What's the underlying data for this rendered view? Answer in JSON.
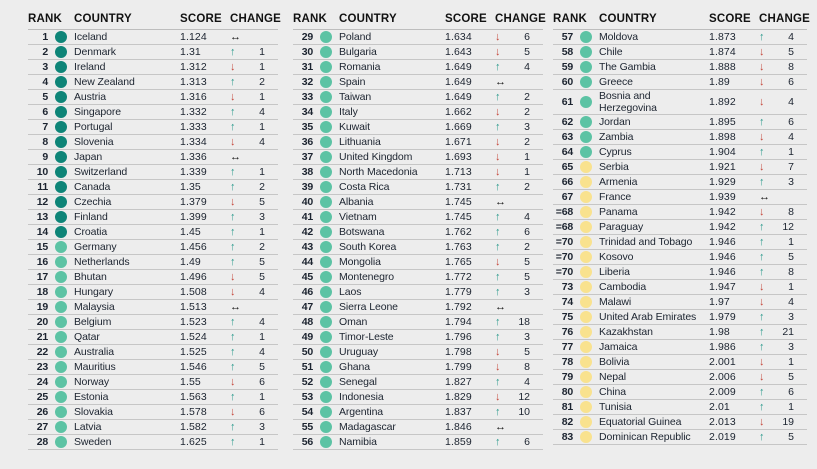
{
  "header": {
    "rank": "RANK",
    "country": "COUNTRY",
    "score": "SCORE",
    "change": "CHANGE"
  },
  "icons": {
    "up": "↑",
    "down": "↓",
    "same": "↔"
  },
  "colors": {
    "background": "#ededed",
    "row_divider": "#c6c6c6",
    "tier_dark_teal": "#0e8578",
    "tier_teal": "#5cc3a4",
    "tier_yellow": "#f9e28e",
    "change_up": "#2b9a8c",
    "change_down": "#c4473b",
    "change_same": "#121212"
  },
  "tables": [
    {
      "rows": [
        {
          "rank": "1",
          "country": "Iceland",
          "score": "1.124",
          "tier": "dark_teal",
          "change": {
            "dir": "same",
            "value": null
          }
        },
        {
          "rank": "2",
          "country": "Denmark",
          "score": "1.31",
          "tier": "dark_teal",
          "change": {
            "dir": "up",
            "value": "1"
          }
        },
        {
          "rank": "3",
          "country": "Ireland",
          "score": "1.312",
          "tier": "dark_teal",
          "change": {
            "dir": "down",
            "value": "1"
          }
        },
        {
          "rank": "4",
          "country": "New Zealand",
          "score": "1.313",
          "tier": "dark_teal",
          "change": {
            "dir": "up",
            "value": "2"
          }
        },
        {
          "rank": "5",
          "country": "Austria",
          "score": "1.316",
          "tier": "dark_teal",
          "change": {
            "dir": "down",
            "value": "1"
          }
        },
        {
          "rank": "6",
          "country": "Singapore",
          "score": "1.332",
          "tier": "dark_teal",
          "change": {
            "dir": "up",
            "value": "4"
          }
        },
        {
          "rank": "7",
          "country": "Portugal",
          "score": "1.333",
          "tier": "dark_teal",
          "change": {
            "dir": "up",
            "value": "1"
          }
        },
        {
          "rank": "8",
          "country": "Slovenia",
          "score": "1.334",
          "tier": "dark_teal",
          "change": {
            "dir": "down",
            "value": "4"
          }
        },
        {
          "rank": "9",
          "country": "Japan",
          "score": "1.336",
          "tier": "dark_teal",
          "change": {
            "dir": "same",
            "value": null
          }
        },
        {
          "rank": "10",
          "country": "Switzerland",
          "score": "1.339",
          "tier": "dark_teal",
          "change": {
            "dir": "up",
            "value": "1"
          }
        },
        {
          "rank": "11",
          "country": "Canada",
          "score": "1.35",
          "tier": "dark_teal",
          "change": {
            "dir": "up",
            "value": "2"
          }
        },
        {
          "rank": "12",
          "country": "Czechia",
          "score": "1.379",
          "tier": "dark_teal",
          "change": {
            "dir": "down",
            "value": "5"
          }
        },
        {
          "rank": "13",
          "country": "Finland",
          "score": "1.399",
          "tier": "dark_teal",
          "change": {
            "dir": "up",
            "value": "3"
          }
        },
        {
          "rank": "14",
          "country": "Croatia",
          "score": "1.45",
          "tier": "dark_teal",
          "change": {
            "dir": "up",
            "value": "1"
          }
        },
        {
          "rank": "15",
          "country": "Germany",
          "score": "1.456",
          "tier": "teal",
          "change": {
            "dir": "up",
            "value": "2"
          }
        },
        {
          "rank": "16",
          "country": "Netherlands",
          "score": "1.49",
          "tier": "teal",
          "change": {
            "dir": "up",
            "value": "5"
          }
        },
        {
          "rank": "17",
          "country": "Bhutan",
          "score": "1.496",
          "tier": "teal",
          "change": {
            "dir": "down",
            "value": "5"
          }
        },
        {
          "rank": "18",
          "country": "Hungary",
          "score": "1.508",
          "tier": "teal",
          "change": {
            "dir": "down",
            "value": "4"
          }
        },
        {
          "rank": "19",
          "country": "Malaysia",
          "score": "1.513",
          "tier": "teal",
          "change": {
            "dir": "same",
            "value": null
          }
        },
        {
          "rank": "20",
          "country": "Belgium",
          "score": "1.523",
          "tier": "teal",
          "change": {
            "dir": "up",
            "value": "4"
          }
        },
        {
          "rank": "21",
          "country": "Qatar",
          "score": "1.524",
          "tier": "teal",
          "change": {
            "dir": "up",
            "value": "1"
          }
        },
        {
          "rank": "22",
          "country": "Australia",
          "score": "1.525",
          "tier": "teal",
          "change": {
            "dir": "up",
            "value": "4"
          }
        },
        {
          "rank": "23",
          "country": "Mauritius",
          "score": "1.546",
          "tier": "teal",
          "change": {
            "dir": "up",
            "value": "5"
          }
        },
        {
          "rank": "24",
          "country": "Norway",
          "score": "1.55",
          "tier": "teal",
          "change": {
            "dir": "down",
            "value": "6"
          }
        },
        {
          "rank": "25",
          "country": "Estonia",
          "score": "1.563",
          "tier": "teal",
          "change": {
            "dir": "up",
            "value": "1"
          }
        },
        {
          "rank": "26",
          "country": "Slovakia",
          "score": "1.578",
          "tier": "teal",
          "change": {
            "dir": "down",
            "value": "6"
          }
        },
        {
          "rank": "27",
          "country": "Latvia",
          "score": "1.582",
          "tier": "teal",
          "change": {
            "dir": "up",
            "value": "3"
          }
        },
        {
          "rank": "28",
          "country": "Sweden",
          "score": "1.625",
          "tier": "teal",
          "change": {
            "dir": "up",
            "value": "1"
          }
        }
      ]
    },
    {
      "rows": [
        {
          "rank": "29",
          "country": "Poland",
          "score": "1.634",
          "tier": "teal",
          "change": {
            "dir": "down",
            "value": "6"
          }
        },
        {
          "rank": "30",
          "country": "Bulgaria",
          "score": "1.643",
          "tier": "teal",
          "change": {
            "dir": "down",
            "value": "5"
          }
        },
        {
          "rank": "31",
          "country": "Romania",
          "score": "1.649",
          "tier": "teal",
          "change": {
            "dir": "up",
            "value": "4"
          }
        },
        {
          "rank": "32",
          "country": "Spain",
          "score": "1.649",
          "tier": "teal",
          "change": {
            "dir": "same",
            "value": null
          }
        },
        {
          "rank": "33",
          "country": "Taiwan",
          "score": "1.649",
          "tier": "teal",
          "change": {
            "dir": "up",
            "value": "2"
          }
        },
        {
          "rank": "34",
          "country": "Italy",
          "score": "1.662",
          "tier": "teal",
          "change": {
            "dir": "down",
            "value": "2"
          }
        },
        {
          "rank": "35",
          "country": "Kuwait",
          "score": "1.669",
          "tier": "teal",
          "change": {
            "dir": "up",
            "value": "3"
          }
        },
        {
          "rank": "36",
          "country": "Lithuania",
          "score": "1.671",
          "tier": "teal",
          "change": {
            "dir": "down",
            "value": "2"
          }
        },
        {
          "rank": "37",
          "country": "United Kingdom",
          "score": "1.693",
          "tier": "teal",
          "change": {
            "dir": "down",
            "value": "1"
          }
        },
        {
          "rank": "38",
          "country": "North Macedonia",
          "score": "1.713",
          "tier": "teal",
          "change": {
            "dir": "down",
            "value": "1"
          }
        },
        {
          "rank": "39",
          "country": "Costa Rica",
          "score": "1.731",
          "tier": "teal",
          "change": {
            "dir": "up",
            "value": "2"
          }
        },
        {
          "rank": "40",
          "country": "Albania",
          "score": "1.745",
          "tier": "teal",
          "change": {
            "dir": "same",
            "value": null
          }
        },
        {
          "rank": "41",
          "country": "Vietnam",
          "score": "1.745",
          "tier": "teal",
          "change": {
            "dir": "up",
            "value": "4"
          }
        },
        {
          "rank": "42",
          "country": "Botswana",
          "score": "1.762",
          "tier": "teal",
          "change": {
            "dir": "up",
            "value": "6"
          }
        },
        {
          "rank": "43",
          "country": "South Korea",
          "score": "1.763",
          "tier": "teal",
          "change": {
            "dir": "up",
            "value": "2"
          }
        },
        {
          "rank": "44",
          "country": "Mongolia",
          "score": "1.765",
          "tier": "teal",
          "change": {
            "dir": "down",
            "value": "5"
          }
        },
        {
          "rank": "45",
          "country": "Montenegro",
          "score": "1.772",
          "tier": "teal",
          "change": {
            "dir": "up",
            "value": "5"
          }
        },
        {
          "rank": "46",
          "country": "Laos",
          "score": "1.779",
          "tier": "teal",
          "change": {
            "dir": "up",
            "value": "3"
          }
        },
        {
          "rank": "47",
          "country": "Sierra Leone",
          "score": "1.792",
          "tier": "teal",
          "change": {
            "dir": "same",
            "value": null
          }
        },
        {
          "rank": "48",
          "country": "Oman",
          "score": "1.794",
          "tier": "teal",
          "change": {
            "dir": "up",
            "value": "18"
          }
        },
        {
          "rank": "49",
          "country": "Timor-Leste",
          "score": "1.796",
          "tier": "teal",
          "change": {
            "dir": "up",
            "value": "3"
          }
        },
        {
          "rank": "50",
          "country": "Uruguay",
          "score": "1.798",
          "tier": "teal",
          "change": {
            "dir": "down",
            "value": "5"
          }
        },
        {
          "rank": "51",
          "country": "Ghana",
          "score": "1.799",
          "tier": "teal",
          "change": {
            "dir": "down",
            "value": "8"
          }
        },
        {
          "rank": "52",
          "country": "Senegal",
          "score": "1.827",
          "tier": "teal",
          "change": {
            "dir": "up",
            "value": "4"
          }
        },
        {
          "rank": "53",
          "country": "Indonesia",
          "score": "1.829",
          "tier": "teal",
          "change": {
            "dir": "down",
            "value": "12"
          }
        },
        {
          "rank": "54",
          "country": "Argentina",
          "score": "1.837",
          "tier": "teal",
          "change": {
            "dir": "up",
            "value": "10"
          }
        },
        {
          "rank": "55",
          "country": "Madagascar",
          "score": "1.846",
          "tier": "teal",
          "change": {
            "dir": "same",
            "value": null
          }
        },
        {
          "rank": "56",
          "country": "Namibia",
          "score": "1.859",
          "tier": "teal",
          "change": {
            "dir": "up",
            "value": "6"
          }
        }
      ]
    },
    {
      "rows": [
        {
          "rank": "57",
          "country": "Moldova",
          "score": "1.873",
          "tier": "teal",
          "change": {
            "dir": "up",
            "value": "4"
          }
        },
        {
          "rank": "58",
          "country": "Chile",
          "score": "1.874",
          "tier": "teal",
          "change": {
            "dir": "down",
            "value": "5"
          }
        },
        {
          "rank": "59",
          "country": "The Gambia",
          "score": "1.888",
          "tier": "teal",
          "change": {
            "dir": "down",
            "value": "8"
          }
        },
        {
          "rank": "60",
          "country": "Greece",
          "score": "1.89",
          "tier": "teal",
          "change": {
            "dir": "down",
            "value": "6"
          }
        },
        {
          "rank": "61",
          "country": "Bosnia and\nHerzegovina",
          "score": "1.892",
          "tier": "teal",
          "change": {
            "dir": "down",
            "value": "4"
          }
        },
        {
          "rank": "62",
          "country": "Jordan",
          "score": "1.895",
          "tier": "teal",
          "change": {
            "dir": "up",
            "value": "6"
          }
        },
        {
          "rank": "63",
          "country": "Zambia",
          "score": "1.898",
          "tier": "teal",
          "change": {
            "dir": "down",
            "value": "4"
          }
        },
        {
          "rank": "64",
          "country": "Cyprus",
          "score": "1.904",
          "tier": "teal",
          "change": {
            "dir": "up",
            "value": "1"
          }
        },
        {
          "rank": "65",
          "country": "Serbia",
          "score": "1.921",
          "tier": "yellow",
          "change": {
            "dir": "down",
            "value": "7"
          }
        },
        {
          "rank": "66",
          "country": "Armenia",
          "score": "1.929",
          "tier": "yellow",
          "change": {
            "dir": "up",
            "value": "3"
          }
        },
        {
          "rank": "67",
          "country": "France",
          "score": "1.939",
          "tier": "yellow",
          "change": {
            "dir": "same",
            "value": null
          }
        },
        {
          "rank": "=68",
          "country": "Panama",
          "score": "1.942",
          "tier": "yellow",
          "change": {
            "dir": "down",
            "value": "8"
          }
        },
        {
          "rank": "=68",
          "country": "Paraguay",
          "score": "1.942",
          "tier": "yellow",
          "change": {
            "dir": "up",
            "value": "12"
          }
        },
        {
          "rank": "=70",
          "country": "Trinidad and Tobago",
          "score": "1.946",
          "tier": "yellow",
          "change": {
            "dir": "up",
            "value": "1"
          }
        },
        {
          "rank": "=70",
          "country": "Kosovo",
          "score": "1.946",
          "tier": "yellow",
          "change": {
            "dir": "up",
            "value": "5"
          }
        },
        {
          "rank": "=70",
          "country": "Liberia",
          "score": "1.946",
          "tier": "yellow",
          "change": {
            "dir": "up",
            "value": "8"
          }
        },
        {
          "rank": "73",
          "country": "Cambodia",
          "score": "1.947",
          "tier": "yellow",
          "change": {
            "dir": "down",
            "value": "1"
          }
        },
        {
          "rank": "74",
          "country": "Malawi",
          "score": "1.97",
          "tier": "yellow",
          "change": {
            "dir": "down",
            "value": "4"
          }
        },
        {
          "rank": "75",
          "country": "United Arab Emirates",
          "score": "1.979",
          "tier": "yellow",
          "change": {
            "dir": "up",
            "value": "3"
          }
        },
        {
          "rank": "76",
          "country": "Kazakhstan",
          "score": "1.98",
          "tier": "yellow",
          "change": {
            "dir": "up",
            "value": "21"
          }
        },
        {
          "rank": "77",
          "country": "Jamaica",
          "score": "1.986",
          "tier": "yellow",
          "change": {
            "dir": "up",
            "value": "3"
          }
        },
        {
          "rank": "78",
          "country": "Bolivia",
          "score": "2.001",
          "tier": "yellow",
          "change": {
            "dir": "down",
            "value": "1"
          }
        },
        {
          "rank": "79",
          "country": "Nepal",
          "score": "2.006",
          "tier": "yellow",
          "change": {
            "dir": "down",
            "value": "5"
          }
        },
        {
          "rank": "80",
          "country": "China",
          "score": "2.009",
          "tier": "yellow",
          "change": {
            "dir": "up",
            "value": "6"
          }
        },
        {
          "rank": "81",
          "country": "Tunisia",
          "score": "2.01",
          "tier": "yellow",
          "change": {
            "dir": "up",
            "value": "1"
          }
        },
        {
          "rank": "82",
          "country": "Equatorial Guinea",
          "score": "2.013",
          "tier": "yellow",
          "change": {
            "dir": "down",
            "value": "19"
          }
        },
        {
          "rank": "83",
          "country": "Dominican Republic",
          "score": "2.019",
          "tier": "yellow",
          "change": {
            "dir": "up",
            "value": "5"
          }
        }
      ]
    }
  ]
}
